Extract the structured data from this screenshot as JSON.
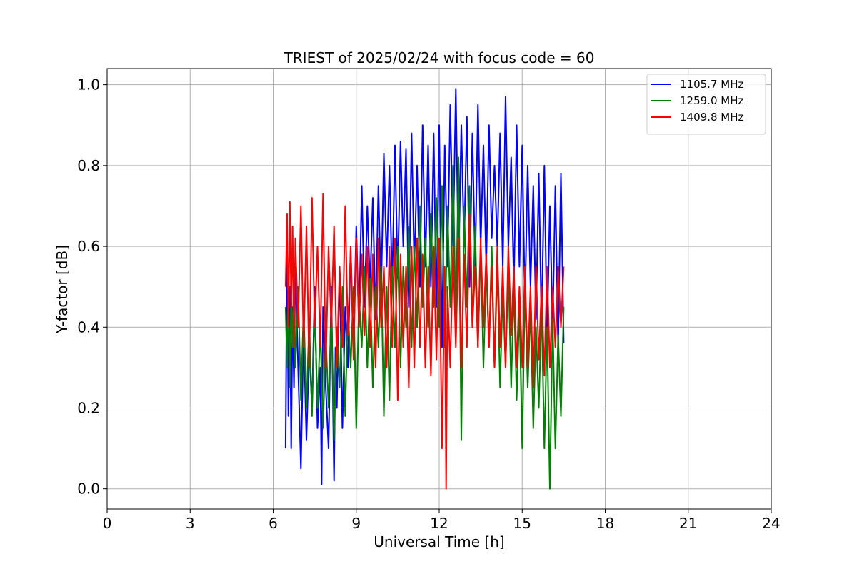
{
  "chart_data": {
    "type": "line",
    "title": "TRIEST of 2025/02/24 with focus code = 60",
    "xlabel": "Universal Time [h]",
    "ylabel": "Y-factor [dB]",
    "xlim": [
      0,
      24
    ],
    "ylim": [
      -0.05,
      1.04
    ],
    "xticks": [
      0,
      3,
      6,
      9,
      12,
      15,
      18,
      21,
      24
    ],
    "xtick_labels": [
      "0",
      "3",
      "6",
      "9",
      "12",
      "15",
      "18",
      "21",
      "24"
    ],
    "yticks": [
      0.0,
      0.2,
      0.4,
      0.6,
      0.8,
      1.0
    ],
    "ytick_labels": [
      "0.0",
      "0.2",
      "0.4",
      "0.6",
      "0.8",
      "1.0"
    ],
    "grid": true,
    "legend_position": "top-right",
    "series": [
      {
        "name": "1105.7 MHz",
        "color": "#0000ff",
        "x": [
          6.45,
          6.5,
          6.55,
          6.6,
          6.65,
          6.7,
          6.75,
          6.8,
          6.9,
          7.0,
          7.1,
          7.2,
          7.3,
          7.4,
          7.5,
          7.6,
          7.7,
          7.75,
          7.8,
          7.9,
          8.0,
          8.1,
          8.2,
          8.25,
          8.3,
          8.4,
          8.5,
          8.6,
          8.7,
          8.8,
          8.9,
          9.0,
          9.1,
          9.2,
          9.3,
          9.4,
          9.5,
          9.6,
          9.7,
          9.8,
          9.9,
          10.0,
          10.1,
          10.2,
          10.3,
          10.4,
          10.5,
          10.6,
          10.7,
          10.8,
          10.9,
          11.0,
          11.1,
          11.2,
          11.3,
          11.4,
          11.5,
          11.6,
          11.7,
          11.8,
          11.9,
          12.0,
          12.1,
          12.2,
          12.3,
          12.4,
          12.5,
          12.6,
          12.7,
          12.8,
          12.9,
          13.0,
          13.1,
          13.2,
          13.3,
          13.4,
          13.5,
          13.6,
          13.7,
          13.8,
          13.9,
          14.0,
          14.1,
          14.2,
          14.3,
          14.4,
          14.5,
          14.6,
          14.7,
          14.8,
          14.9,
          15.0,
          15.1,
          15.2,
          15.3,
          15.4,
          15.5,
          15.6,
          15.7,
          15.8,
          15.9,
          16.0,
          16.1,
          16.2,
          16.3,
          16.4,
          16.5
        ],
        "y": [
          0.1,
          0.62,
          0.18,
          0.5,
          0.1,
          0.45,
          0.25,
          0.55,
          0.3,
          0.05,
          0.4,
          0.12,
          0.35,
          0.2,
          0.5,
          0.15,
          0.3,
          0.01,
          0.45,
          0.25,
          0.1,
          0.5,
          0.02,
          0.35,
          0.2,
          0.55,
          0.15,
          0.45,
          0.3,
          0.6,
          0.35,
          0.65,
          0.4,
          0.75,
          0.45,
          0.7,
          0.5,
          0.72,
          0.42,
          0.75,
          0.48,
          0.83,
          0.55,
          0.8,
          0.5,
          0.85,
          0.52,
          0.86,
          0.6,
          0.84,
          0.45,
          0.88,
          0.55,
          0.8,
          0.5,
          0.9,
          0.55,
          0.85,
          0.5,
          0.88,
          0.45,
          0.9,
          0.35,
          0.85,
          0.55,
          0.95,
          0.6,
          0.99,
          0.55,
          0.9,
          0.6,
          0.92,
          0.5,
          0.88,
          0.55,
          0.95,
          0.6,
          0.85,
          0.55,
          0.9,
          0.62,
          0.8,
          0.6,
          0.88,
          0.55,
          0.97,
          0.6,
          0.82,
          0.5,
          0.9,
          0.55,
          0.85,
          0.45,
          0.8,
          0.5,
          0.75,
          0.42,
          0.78,
          0.4,
          0.8,
          0.38,
          0.7,
          0.4,
          0.75,
          0.35,
          0.78,
          0.36
        ]
      },
      {
        "name": "1259.0 MHz",
        "color": "#008000",
        "x": [
          6.45,
          6.5,
          6.55,
          6.6,
          6.65,
          6.7,
          6.75,
          6.8,
          6.9,
          7.0,
          7.1,
          7.2,
          7.3,
          7.4,
          7.5,
          7.6,
          7.7,
          7.8,
          7.9,
          8.0,
          8.1,
          8.2,
          8.3,
          8.4,
          8.5,
          8.6,
          8.7,
          8.8,
          8.9,
          9.0,
          9.1,
          9.2,
          9.3,
          9.4,
          9.5,
          9.6,
          9.7,
          9.8,
          9.9,
          10.0,
          10.1,
          10.2,
          10.3,
          10.4,
          10.5,
          10.6,
          10.7,
          10.8,
          10.9,
          11.0,
          11.1,
          11.2,
          11.3,
          11.4,
          11.5,
          11.6,
          11.7,
          11.8,
          11.9,
          12.0,
          12.1,
          12.2,
          12.3,
          12.4,
          12.5,
          12.6,
          12.7,
          12.8,
          12.9,
          13.0,
          13.1,
          13.2,
          13.3,
          13.4,
          13.5,
          13.6,
          13.7,
          13.8,
          13.9,
          14.0,
          14.1,
          14.2,
          14.3,
          14.4,
          14.5,
          14.6,
          14.7,
          14.8,
          14.9,
          15.0,
          15.1,
          15.2,
          15.3,
          15.4,
          15.5,
          15.6,
          15.7,
          15.8,
          15.9,
          16.0,
          16.1,
          16.2,
          16.3,
          16.4,
          16.5
        ],
        "y": [
          0.45,
          0.3,
          0.5,
          0.25,
          0.48,
          0.35,
          0.55,
          0.3,
          0.5,
          0.22,
          0.45,
          0.2,
          0.42,
          0.18,
          0.45,
          0.2,
          0.4,
          0.15,
          0.38,
          0.2,
          0.45,
          0.12,
          0.4,
          0.25,
          0.5,
          0.18,
          0.45,
          0.3,
          0.5,
          0.15,
          0.48,
          0.35,
          0.55,
          0.3,
          0.52,
          0.25,
          0.5,
          0.35,
          0.55,
          0.18,
          0.5,
          0.22,
          0.55,
          0.35,
          0.6,
          0.3,
          0.55,
          0.4,
          0.65,
          0.35,
          0.6,
          0.4,
          0.7,
          0.45,
          0.62,
          0.4,
          0.68,
          0.45,
          0.72,
          0.4,
          0.75,
          0.35,
          0.7,
          0.45,
          0.8,
          0.4,
          0.82,
          0.12,
          0.7,
          0.45,
          0.75,
          0.4,
          0.65,
          0.35,
          0.6,
          0.3,
          0.55,
          0.35,
          0.6,
          0.3,
          0.55,
          0.25,
          0.5,
          0.3,
          0.55,
          0.25,
          0.5,
          0.22,
          0.45,
          0.1,
          0.5,
          0.25,
          0.45,
          0.15,
          0.4,
          0.2,
          0.45,
          0.1,
          0.4,
          0.0,
          0.42,
          0.1,
          0.38,
          0.18,
          0.45
        ]
      },
      {
        "name": "1409.8 MHz",
        "color": "#ff0000",
        "x": [
          6.45,
          6.5,
          6.55,
          6.6,
          6.65,
          6.7,
          6.75,
          6.8,
          6.9,
          7.0,
          7.1,
          7.2,
          7.3,
          7.4,
          7.5,
          7.6,
          7.7,
          7.8,
          7.9,
          8.0,
          8.1,
          8.2,
          8.3,
          8.4,
          8.5,
          8.6,
          8.7,
          8.8,
          8.9,
          9.0,
          9.1,
          9.2,
          9.3,
          9.4,
          9.5,
          9.6,
          9.7,
          9.8,
          9.9,
          10.0,
          10.1,
          10.2,
          10.3,
          10.4,
          10.5,
          10.6,
          10.7,
          10.8,
          10.9,
          11.0,
          11.1,
          11.2,
          11.3,
          11.4,
          11.5,
          11.6,
          11.7,
          11.8,
          11.9,
          12.0,
          12.1,
          12.2,
          12.25,
          12.3,
          12.4,
          12.5,
          12.6,
          12.7,
          12.8,
          12.9,
          13.0,
          13.1,
          13.2,
          13.3,
          13.4,
          13.5,
          13.6,
          13.7,
          13.8,
          13.9,
          14.0,
          14.1,
          14.2,
          14.3,
          14.4,
          14.5,
          14.6,
          14.7,
          14.8,
          14.9,
          15.0,
          15.1,
          15.2,
          15.3,
          15.4,
          15.5,
          15.6,
          15.7,
          15.8,
          15.9,
          16.0,
          16.1,
          16.2,
          16.3,
          16.4,
          16.5
        ],
        "y": [
          0.5,
          0.68,
          0.4,
          0.71,
          0.45,
          0.65,
          0.35,
          0.62,
          0.4,
          0.7,
          0.35,
          0.65,
          0.3,
          0.72,
          0.4,
          0.6,
          0.35,
          0.73,
          0.3,
          0.6,
          0.4,
          0.65,
          0.3,
          0.55,
          0.35,
          0.7,
          0.38,
          0.6,
          0.32,
          0.62,
          0.4,
          0.58,
          0.38,
          0.6,
          0.35,
          0.58,
          0.3,
          0.62,
          0.4,
          0.55,
          0.3,
          0.6,
          0.35,
          0.62,
          0.22,
          0.58,
          0.35,
          0.55,
          0.25,
          0.6,
          0.3,
          0.62,
          0.35,
          0.58,
          0.3,
          0.55,
          0.28,
          0.6,
          0.32,
          0.62,
          0.1,
          0.55,
          0.0,
          0.5,
          0.3,
          0.6,
          0.35,
          0.62,
          0.3,
          0.58,
          0.35,
          0.68,
          0.4,
          0.55,
          0.35,
          0.62,
          0.4,
          0.58,
          0.35,
          0.55,
          0.3,
          0.6,
          0.35,
          0.55,
          0.3,
          0.6,
          0.38,
          0.55,
          0.3,
          0.5,
          0.3,
          0.55,
          0.3,
          0.5,
          0.25,
          0.55,
          0.32,
          0.5,
          0.28,
          0.55,
          0.3,
          0.5,
          0.35,
          0.55,
          0.4,
          0.55
        ]
      }
    ]
  }
}
